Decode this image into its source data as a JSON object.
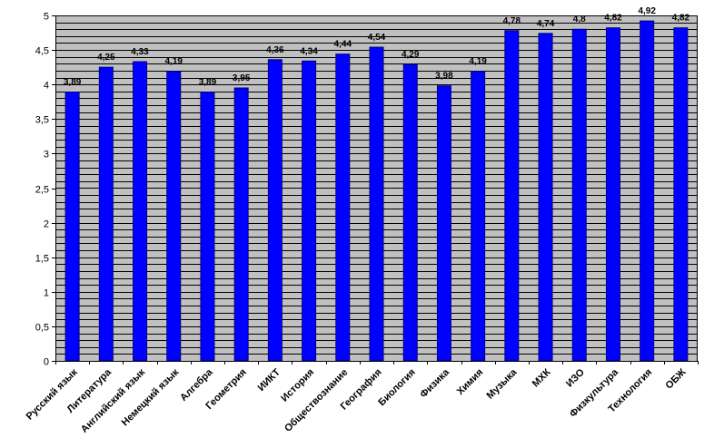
{
  "chart_data": {
    "type": "bar",
    "categories": [
      "Русский язык",
      "Литература",
      "Английский язык",
      "Немецкий язык",
      "Алгебра",
      "Геометрия",
      "ИИКТ",
      "История",
      "Обществознание",
      "География",
      "Биология",
      "Физика",
      "Химия",
      "Музыка",
      "МХК",
      "ИЗО",
      "Физкультура",
      "Технология",
      "ОБЖ"
    ],
    "values": [
      3.89,
      4.25,
      4.33,
      4.19,
      3.89,
      3.95,
      4.36,
      4.34,
      4.44,
      4.54,
      4.29,
      3.98,
      4.19,
      4.78,
      4.74,
      4.8,
      4.82,
      4.92,
      4.82
    ],
    "data_labels": [
      "3,89",
      "4,25",
      "4,33",
      "4,19",
      "3,89",
      "3,95",
      "4,36",
      "4,34",
      "4,44",
      "4,54",
      "4,29",
      "3,98",
      "4,19",
      "4,78",
      "4,74",
      "4,8",
      "4,82",
      "4,92",
      "4,82"
    ],
    "y_ticks": [
      0,
      0.5,
      1,
      1.5,
      2,
      2.5,
      3,
      3.5,
      4,
      4.5,
      5
    ],
    "y_tick_labels": [
      "0",
      "0,5",
      "1",
      "1,5",
      "2",
      "2,5",
      "3",
      "3,5",
      "4",
      "4,5",
      "5"
    ],
    "ylim": [
      0,
      5
    ],
    "grid": true,
    "colors": {
      "bar": "#0000ff",
      "bar_stroke": "#000080",
      "plot_bg": "#c0c0c0",
      "grid": "#000000"
    }
  }
}
